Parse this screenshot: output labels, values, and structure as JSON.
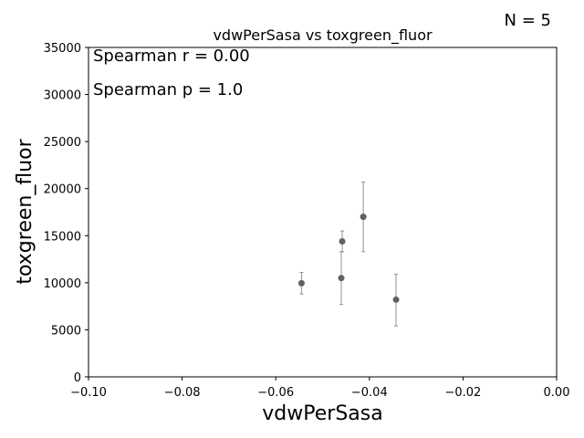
{
  "n_label": "N = 5",
  "chart_data": {
    "type": "scatter",
    "title": "vdwPerSasa vs toxgreen_fluor",
    "xlabel": "vdwPerSasa",
    "ylabel": "toxgreen_fluor",
    "xlim": [
      -0.1,
      0.0
    ],
    "ylim": [
      0,
      35000
    ],
    "xticks": [
      -0.1,
      -0.08,
      -0.06,
      -0.04,
      -0.02,
      0.0
    ],
    "xtick_labels": [
      "−0.10",
      "−0.08",
      "−0.06",
      "−0.04",
      "−0.02",
      "0.00"
    ],
    "yticks": [
      0,
      5000,
      10000,
      15000,
      20000,
      25000,
      30000,
      35000
    ],
    "ytick_labels": [
      "0",
      "5000",
      "10000",
      "15000",
      "20000",
      "25000",
      "30000",
      "35000"
    ],
    "annotations": [
      "Spearman r = 0.00",
      "Spearman p = 1.0"
    ],
    "points": [
      {
        "x": -0.0545,
        "y": 9950,
        "err_low": 8800,
        "err_high": 11100
      },
      {
        "x": -0.0458,
        "y": 14400,
        "err_low": 13300,
        "err_high": 15500
      },
      {
        "x": -0.046,
        "y": 10500,
        "err_low": 7700,
        "err_high": 13300
      },
      {
        "x": -0.0413,
        "y": 17000,
        "err_low": 13300,
        "err_high": 20700
      },
      {
        "x": -0.0343,
        "y": 8200,
        "err_low": 5400,
        "err_high": 10900
      }
    ],
    "marker_color": "#606060",
    "errorbar_color": "#909090"
  }
}
